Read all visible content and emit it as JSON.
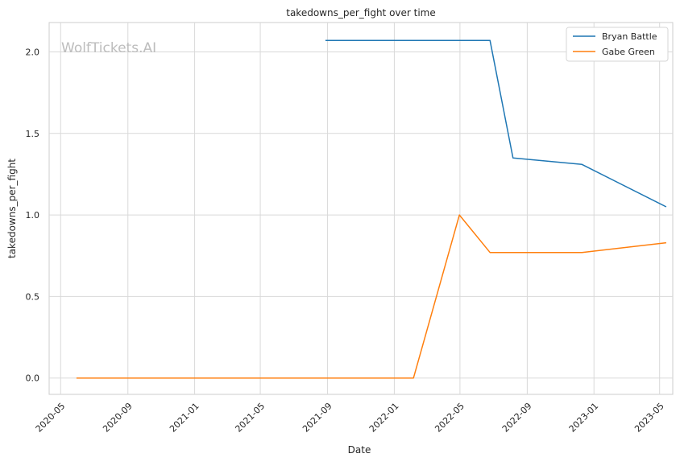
{
  "chart_data": {
    "type": "line",
    "title": "takedowns_per_fight over time",
    "xlabel": "Date",
    "ylabel": "takedowns_per_fight",
    "watermark": "WolfTickets.AI",
    "grid": true,
    "legend_position": "top-right",
    "xlim": [
      "2020-04-10",
      "2023-05-25"
    ],
    "ylim": [
      -0.1,
      2.18
    ],
    "x_ticks": [
      "2020-05",
      "2020-09",
      "2021-01",
      "2021-05",
      "2021-09",
      "2022-01",
      "2022-05",
      "2022-09",
      "2023-01",
      "2023-05"
    ],
    "y_ticks": [
      "0.0",
      "0.5",
      "1.0",
      "1.5",
      "2.0"
    ],
    "series": [
      {
        "name": "Bryan Battle",
        "color": "#1f77b4",
        "points": [
          [
            "2021-08-28",
            2.07
          ],
          [
            "2022-06-25",
            2.07
          ],
          [
            "2022-08-06",
            1.35
          ],
          [
            "2022-12-10",
            1.31
          ],
          [
            "2023-05-13",
            1.05
          ]
        ]
      },
      {
        "name": "Gabe Green",
        "color": "#ff7f0e",
        "points": [
          [
            "2020-05-30",
            0.0
          ],
          [
            "2022-02-05",
            0.0
          ],
          [
            "2022-04-30",
            1.0
          ],
          [
            "2022-06-25",
            0.77
          ],
          [
            "2022-12-10",
            0.77
          ],
          [
            "2023-05-13",
            0.83
          ]
        ]
      }
    ]
  }
}
